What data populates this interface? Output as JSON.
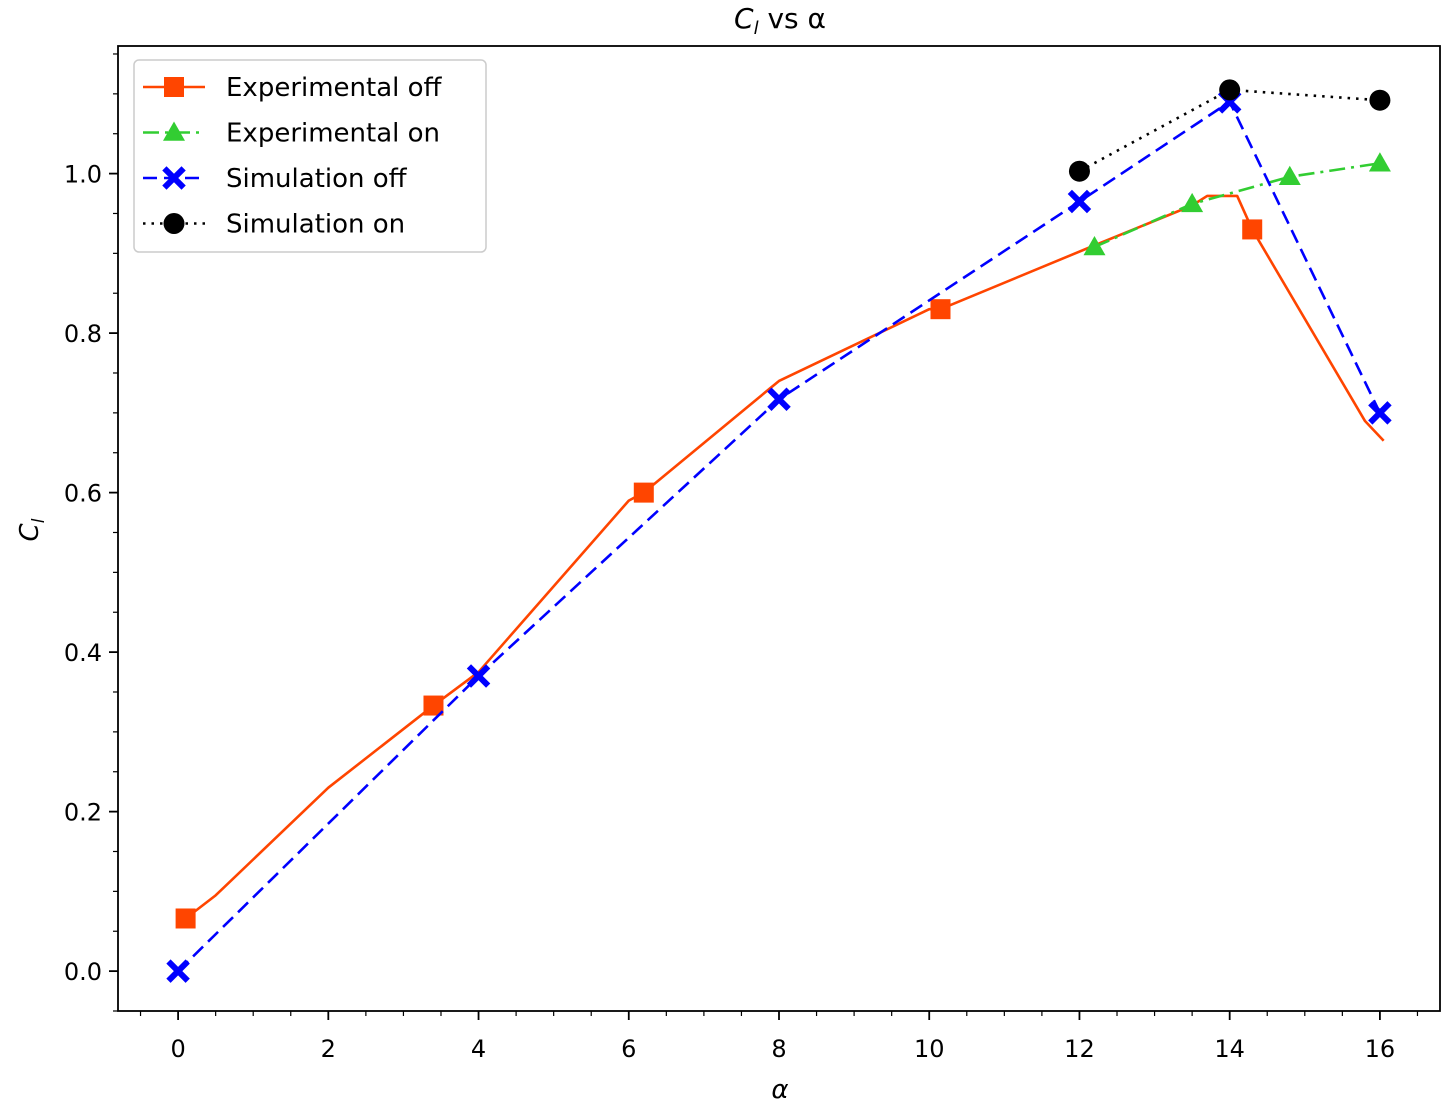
{
  "chart_data": {
    "type": "line",
    "title_main": "C",
    "title_sub": "l",
    "title_rest": " vs α",
    "xlabel": "α",
    "ylabel_main": "C",
    "ylabel_sub": "l",
    "xlim": [
      -0.8,
      16.8
    ],
    "ylim": [
      -0.05,
      1.16
    ],
    "x_ticks": [
      0,
      2,
      4,
      6,
      8,
      10,
      12,
      14,
      16
    ],
    "x_tick_labels": [
      "0",
      "2",
      "4",
      "6",
      "8",
      "10",
      "12",
      "14",
      "16"
    ],
    "y_ticks": [
      0.0,
      0.2,
      0.4,
      0.6,
      0.8,
      1.0
    ],
    "y_tick_labels": [
      "0.0",
      "0.2",
      "0.4",
      "0.6",
      "0.8",
      "1.0"
    ],
    "legend_position": "upper-left",
    "series": [
      {
        "name": "Experimental off",
        "color": "#ff4500",
        "line_style": "solid",
        "marker": "square",
        "x": [
          0.1,
          0.5,
          2.0,
          3.4,
          4.0,
          6.0,
          6.2,
          8.0,
          10.0,
          10.15,
          12.2,
          13.5,
          13.7,
          14.1,
          14.3,
          15.8,
          16.05
        ],
        "y": [
          0.066,
          0.095,
          0.23,
          0.333,
          0.375,
          0.59,
          0.6,
          0.74,
          0.83,
          0.83,
          0.91,
          0.96,
          0.972,
          0.972,
          0.93,
          0.69,
          0.665
        ],
        "marker_x": [
          0.1,
          3.4,
          6.2,
          10.15,
          14.3
        ],
        "marker_y": [
          0.066,
          0.333,
          0.6,
          0.83,
          0.93
        ]
      },
      {
        "name": "Experimental on",
        "color": "#32cd32",
        "line_style": "dashdot",
        "marker": "triangle",
        "x": [
          12.2,
          13.5,
          14.8,
          16.0
        ],
        "y": [
          0.908,
          0.962,
          0.996,
          1.013
        ],
        "marker_x": [
          12.2,
          13.5,
          14.8,
          16.0
        ],
        "marker_y": [
          0.908,
          0.962,
          0.996,
          1.013
        ]
      },
      {
        "name": "Simulation off",
        "color": "#0000ff",
        "line_style": "dashed",
        "marker": "x-filled",
        "x": [
          0,
          4,
          8,
          12,
          14,
          16
        ],
        "y": [
          0.0,
          0.37,
          0.717,
          0.965,
          1.09,
          0.7
        ],
        "marker_x": [
          0,
          4,
          8,
          12,
          14,
          16
        ],
        "marker_y": [
          0.0,
          0.37,
          0.717,
          0.965,
          1.09,
          0.7
        ]
      },
      {
        "name": "Simulation on",
        "color": "#000000",
        "line_style": "dotted",
        "marker": "circle",
        "x": [
          12,
          14,
          16
        ],
        "y": [
          1.003,
          1.105,
          1.092
        ],
        "marker_x": [
          12,
          14,
          16
        ],
        "marker_y": [
          1.003,
          1.105,
          1.092
        ]
      }
    ]
  }
}
